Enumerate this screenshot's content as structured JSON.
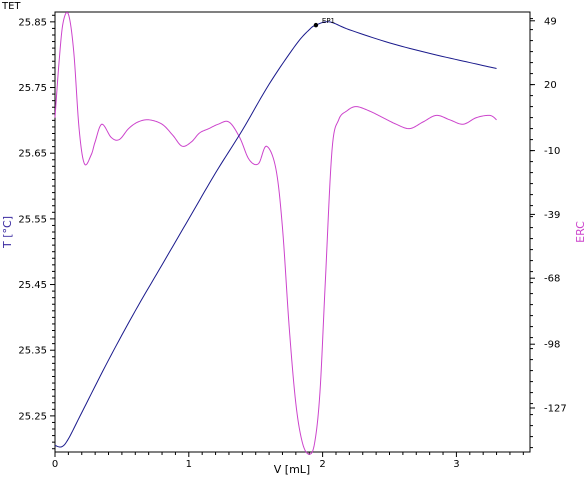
{
  "window": {
    "corner_title": "TET"
  },
  "chart_data": {
    "type": "line",
    "xlabel": "V [mL]",
    "ylabel_left": "T [°C]",
    "ylabel_right": "ERC",
    "xlim": [
      0,
      3.55
    ],
    "ylim_left": [
      25.195,
      25.865
    ],
    "ylim_right": [
      -147,
      53
    ],
    "x_ticks": [
      0,
      1,
      2,
      3
    ],
    "x_tick_labels": [
      "0",
      "1",
      "2",
      "3"
    ],
    "y_left_ticks": [
      25.25,
      25.35,
      25.45,
      25.55,
      25.65,
      25.75,
      25.85
    ],
    "y_left_tick_labels": [
      "25.25",
      "25.35",
      "25.45",
      "25.55",
      "25.65",
      "25.75",
      "25.85"
    ],
    "y_right_ticks": [
      -127,
      -98,
      -68,
      -39,
      -10,
      20,
      49
    ],
    "y_right_tick_labels": [
      "-127",
      "-98",
      "-68",
      "-39",
      "-10",
      "20",
      "49"
    ],
    "grid": false,
    "colors": {
      "temperature": "#1a1a8c",
      "erc": "#cc44cc",
      "axis_left_title": "#3a2aa0",
      "axis_right_title": "#cc44cc"
    },
    "series": [
      {
        "axis": "left",
        "x": [
          0,
          0.05,
          0.1,
          0.2,
          0.4,
          0.6,
          0.8,
          1.0,
          1.2,
          1.4,
          1.6,
          1.8,
          1.9,
          1.95,
          2.05,
          2.2,
          2.5,
          2.8,
          3.1,
          3.3
        ],
        "values": [
          25.205,
          25.203,
          25.215,
          25.255,
          25.335,
          25.41,
          25.48,
          25.55,
          25.62,
          25.685,
          25.755,
          25.815,
          25.838,
          25.845,
          25.85,
          25.838,
          25.818,
          25.802,
          25.788,
          25.779
        ]
      },
      {
        "axis": "right",
        "x": [
          0,
          0.03,
          0.06,
          0.1,
          0.14,
          0.18,
          0.22,
          0.27,
          0.3,
          0.35,
          0.42,
          0.48,
          0.55,
          0.62,
          0.7,
          0.8,
          0.88,
          0.95,
          1.02,
          1.08,
          1.15,
          1.22,
          1.3,
          1.38,
          1.45,
          1.52,
          1.58,
          1.65,
          1.7,
          1.75,
          1.8,
          1.85,
          1.9,
          1.94,
          1.98,
          2.02,
          2.07,
          2.12,
          2.18,
          2.25,
          2.35,
          2.45,
          2.55,
          2.65,
          2.75,
          2.85,
          2.95,
          3.05,
          3.15,
          3.25,
          3.3
        ],
        "values": [
          5,
          30,
          48,
          52,
          35,
          0,
          -16,
          -12,
          -6,
          2,
          -4,
          -5,
          0,
          3,
          4,
          2,
          -3,
          -8,
          -6,
          -2,
          0,
          2,
          3,
          -4,
          -14,
          -16,
          -8,
          -18,
          -45,
          -90,
          -125,
          -143,
          -148,
          -143,
          -120,
          -70,
          -10,
          4,
          8,
          10,
          8,
          5,
          2,
          0,
          3,
          6,
          4,
          2,
          5,
          6,
          4
        ]
      }
    ],
    "annotations": [
      {
        "label": "EP1",
        "x": 1.95,
        "y": 25.845
      }
    ]
  }
}
